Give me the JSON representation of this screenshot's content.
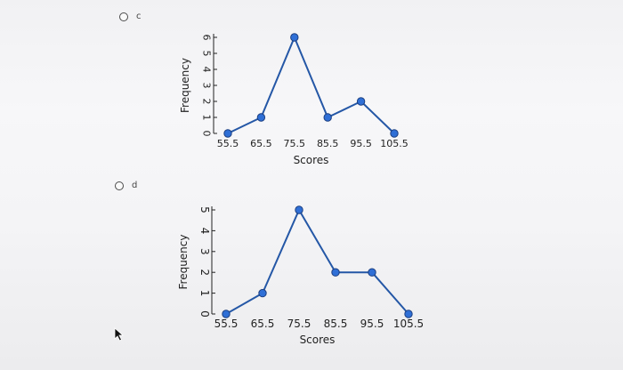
{
  "options": [
    {
      "letter": "c"
    },
    {
      "letter": "d"
    }
  ],
  "chart_data": [
    {
      "type": "line",
      "x": [
        55.5,
        65.5,
        75.5,
        85.5,
        95.5,
        105.5
      ],
      "y": [
        0,
        1,
        6,
        1,
        2,
        0
      ],
      "x_tick_labels": [
        "55.5",
        "65.5",
        "75.5",
        "85.5",
        "95.5",
        "105.5"
      ],
      "y_tick_labels": [
        "0",
        "1",
        "2",
        "3",
        "4",
        "5",
        "6"
      ],
      "xlabel": "Scores",
      "ylabel": "Frequency",
      "ylim": [
        0,
        6
      ],
      "color": "#2457a6",
      "marker_color": "#2f6fd6"
    },
    {
      "type": "line",
      "x": [
        55.5,
        65.5,
        75.5,
        85.5,
        95.5,
        105.5
      ],
      "y": [
        0,
        1,
        5,
        2,
        2,
        0
      ],
      "x_tick_labels": [
        "55.5",
        "65.5",
        "75.5",
        "85.5",
        "95.5",
        "105.5"
      ],
      "y_tick_labels": [
        "0",
        "1",
        "2",
        "3",
        "4",
        "5"
      ],
      "xlabel": "Scores",
      "ylabel": "Frequency",
      "ylim": [
        0,
        5
      ],
      "color": "#2457a6",
      "marker_color": "#2f6fd6"
    }
  ]
}
